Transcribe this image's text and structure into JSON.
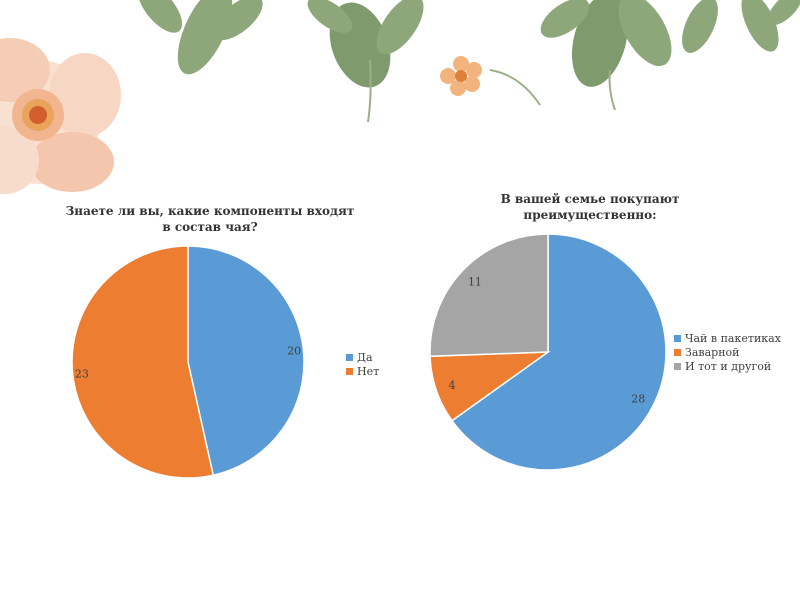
{
  "chart_data": [
    {
      "type": "pie",
      "title": "Знаете ли вы, какие компоненты входят в состав чая?",
      "title_lines": [
        "Знаете ли вы, какие компоненты входят",
        "в состав чая?"
      ],
      "categories": [
        "Да",
        "Нет"
      ],
      "values": [
        20,
        23
      ],
      "colors": [
        "#5b9bd5",
        "#ed7d31"
      ],
      "legend_position": "right"
    },
    {
      "type": "pie",
      "title": "В вашей семье покупают преимущественно:",
      "title_lines": [
        "В вашей семье покупают",
        "преимущественно:"
      ],
      "categories": [
        "Чай в пакетиках",
        "Заварной",
        "И тот и другой"
      ],
      "values": [
        28,
        4,
        11
      ],
      "colors": [
        "#5b9bd5",
        "#ed7d31",
        "#a5a5a5"
      ],
      "legend_position": "right"
    }
  ],
  "decor": {
    "leaf_color": "#8ea77a",
    "flower_color": "#f6d2bf",
    "flower_center": "#e9a35a"
  }
}
